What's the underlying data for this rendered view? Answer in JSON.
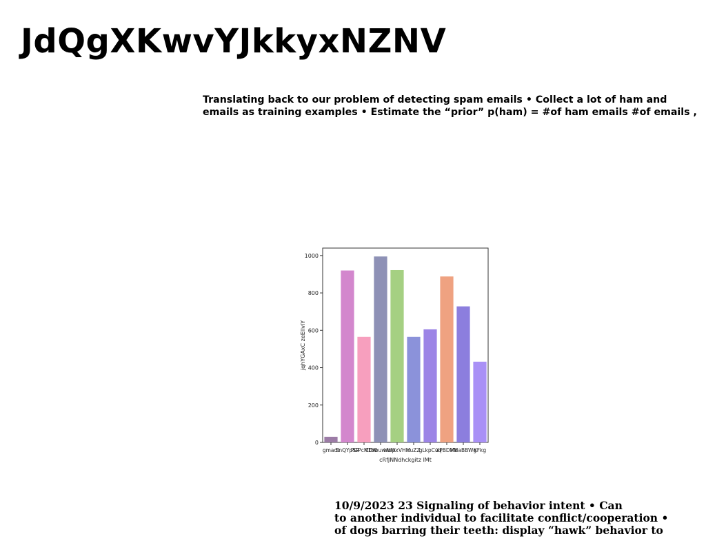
{
  "page": {
    "title": "JdQgXKwvYJkkyxNZNV",
    "top_text": [
      "Translating back to our problem of detecting spam emails • Collect a lot of ham and",
      "emails as training examples • Estimate the “prior” p(ham) = #of ham emails #of emails ,"
    ],
    "bottom_text": [
      "10/9/2023 23 Signaling of behavior intent • Can",
      "to another individual to facilitate conflict/cooperation •",
      "of dogs barring their teeth: display “hawk” behavior to"
    ]
  },
  "chart_data": {
    "type": "bar",
    "categories": [
      "gmadt",
      "SnQYpSR",
      "PGPcMDAl",
      "CtNbuwAeX",
      "kdfpxVHM",
      "cuZZ",
      "gLkpCuq",
      "XPBDMb",
      "VMaBBWg",
      "KFkg"
    ],
    "values": [
      30,
      920,
      565,
      995,
      922,
      565,
      605,
      888,
      728,
      432
    ],
    "colors": [
      "#9c7ca6",
      "#d387cd",
      "#f79fbe",
      "#8e91b6",
      "#a5d082",
      "#8b92da",
      "#9c84e6",
      "#efa281",
      "#8c7ede",
      "#a990f6"
    ],
    "xlabel": "cRfJNNdhckgitz lMt",
    "ylabel": "jqhYGAxC zeEllvlY",
    "ylim": [
      0,
      1040
    ],
    "yticks": [
      0,
      200,
      400,
      600,
      800,
      1000
    ],
    "grid": false
  }
}
